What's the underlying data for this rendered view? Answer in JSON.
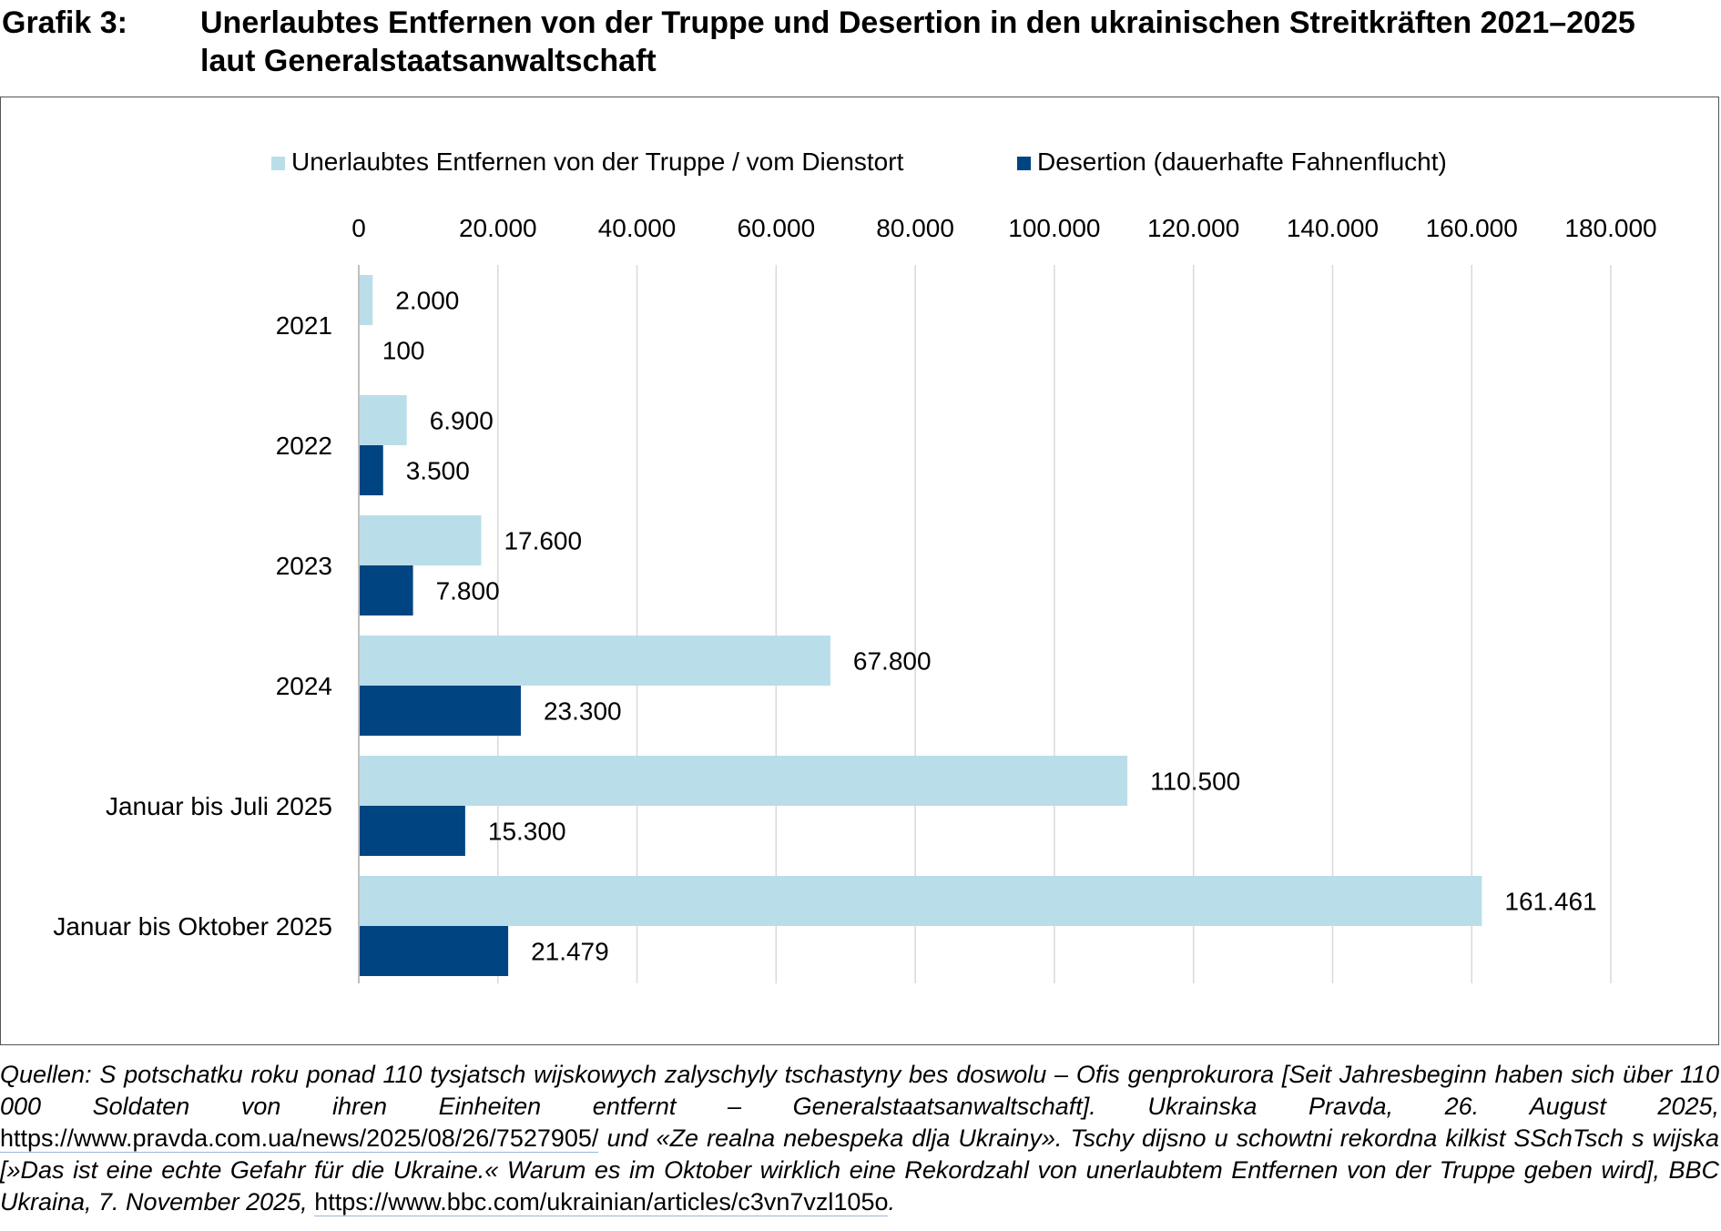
{
  "header": {
    "label": "Grafik 3:",
    "title_line1": "Unerlaubtes Entfernen von der Truppe und Desertion in den ukrainischen Streitkräften 2021–2025",
    "title_line2": "laut Generalstaatsanwaltschaft"
  },
  "colors": {
    "series1": "#b9dee9",
    "series2": "#004481",
    "grid": "#d9d9d9",
    "axis": "#bfbfbf",
    "text": "#000000"
  },
  "chart_data": {
    "type": "bar",
    "orientation": "horizontal",
    "title": "",
    "xlabel": "",
    "ylabel": "",
    "xlim": [
      0,
      180000
    ],
    "x_ticks": [
      0,
      20000,
      40000,
      60000,
      80000,
      100000,
      120000,
      140000,
      160000,
      180000
    ],
    "x_tick_labels": [
      "0",
      "20.000",
      "40.000",
      "60.000",
      "80.000",
      "100.000",
      "120.000",
      "140.000",
      "160.000",
      "180.000"
    ],
    "x_axis_position": "top",
    "grid": true,
    "legend_position": "top",
    "categories": [
      "2021",
      "2022",
      "2023",
      "2024",
      "Januar bis Juli 2025",
      "Januar bis Oktober 2025"
    ],
    "series": [
      {
        "name": "Unerlaubtes Entfernen von der Truppe / vom Dienstort",
        "values": [
          2000,
          6900,
          17600,
          67800,
          110500,
          161461
        ],
        "labels": [
          "2.000",
          "6.900",
          "17.600",
          "67.800",
          "110.500",
          "161.461"
        ]
      },
      {
        "name": "Desertion (dauerhafte Fahnenflucht)",
        "values": [
          100,
          3500,
          7800,
          23300,
          15300,
          21479
        ],
        "labels": [
          "100",
          "3.500",
          "7.800",
          "23.300",
          "15.300",
          "21.479"
        ]
      }
    ]
  },
  "source": {
    "text_a": "Quellen: S potschatku roku ponad 110 tysjatsch wijskowych zalyschyly tschastyny bes doswolu – Ofis genprokurora [Seit Jahresbeginn haben sich über 110 000 Soldaten von ihren Einheiten entfernt – Generalstaatsanwaltschaft]. Ukrainska Pravda, 26. August 2025, ",
    "url_1": "https://www.pravda.com.ua/news/2025/08/26/7527905/",
    "text_b": " und «Ze realna nebespeka dlja Ukrainy». Tschy dijsno u schowtni rekordna kilkist SSchTsch s wijska [»Das ist eine echte Gefahr für die Ukraine.« Warum es im Oktober wirklich eine Rekordzahl von unerlaubtem Entfernen von der Truppe  geben wird], BBC Ukraina, 7. November 2025, ",
    "url_2": "https://www.bbc.com/ukrainian/articles/c3vn7vzl105o",
    "text_c": "."
  }
}
